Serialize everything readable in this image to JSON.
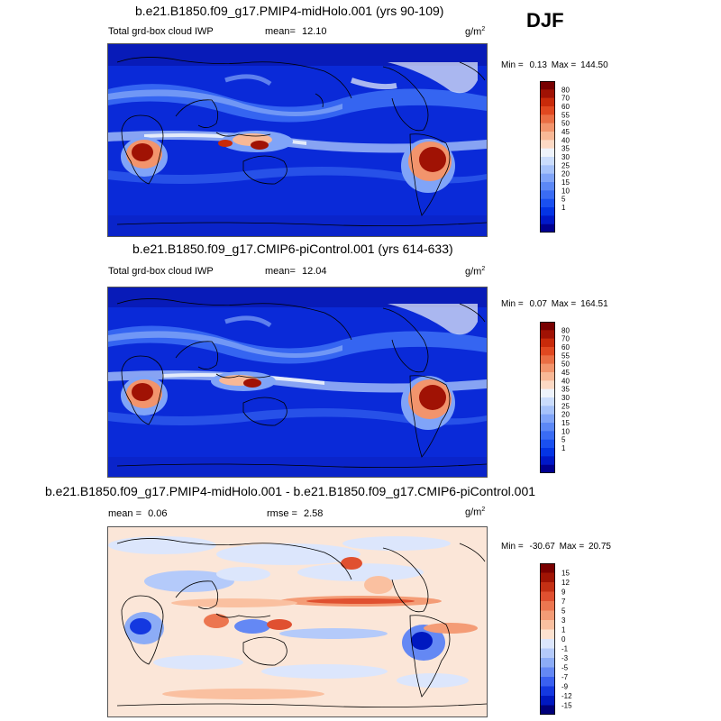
{
  "season": "DJF",
  "colors": {
    "seq": [
      "#000090",
      "#0018c8",
      "#0434e4",
      "#1a50f0",
      "#3a6cf4",
      "#5c88f6",
      "#80a4f8",
      "#a6c2fa",
      "#cadcfc",
      "#eef3fb",
      "#fcd9c4",
      "#f8b896",
      "#f2946c",
      "#ea6e44",
      "#e04820",
      "#c82a0a",
      "#a01204",
      "#780000"
    ],
    "div": [
      "#00007a",
      "#0018c0",
      "#1438e0",
      "#3a60f0",
      "#6488f4",
      "#8cacf6",
      "#b4cafa",
      "#dce6fc",
      "#fce2d0",
      "#fac0a0",
      "#f49c76",
      "#ec7650",
      "#e05030",
      "#c43014",
      "#a01404",
      "#7a0000"
    ]
  },
  "panels": [
    {
      "title": "b.e21.B1850.f09_g17.PMIP4-midHolo.001 (yrs 90-109)",
      "left_label": "Total grd-box cloud IWP",
      "mean_label": "mean=",
      "mean_value": "12.10",
      "units": "g/m",
      "units_exp": "2",
      "min_label": "Min =",
      "min_value": "0.13",
      "max_label": "Max =",
      "max_value": "144.50",
      "levels": [
        "80",
        "70",
        "60",
        "55",
        "50",
        "45",
        "40",
        "35",
        "30",
        "25",
        "20",
        "15",
        "10",
        "5",
        "1"
      ]
    },
    {
      "title": "b.e21.B1850.f09_g17.CMIP6-piControl.001 (yrs 614-633)",
      "left_label": "Total grd-box cloud IWP",
      "mean_label": "mean=",
      "mean_value": "12.04",
      "units": "g/m",
      "units_exp": "2",
      "min_label": "Min =",
      "min_value": "0.07",
      "max_label": "Max =",
      "max_value": "164.51",
      "levels": [
        "80",
        "70",
        "60",
        "55",
        "50",
        "45",
        "40",
        "35",
        "30",
        "25",
        "20",
        "15",
        "10",
        "5",
        "1"
      ]
    },
    {
      "title": "b.e21.B1850.f09_g17.PMIP4-midHolo.001 - b.e21.B1850.f09_g17.CMIP6-piControl.001",
      "mean_label": "mean =",
      "mean_value": "0.06",
      "rmse_label": "rmse =",
      "rmse_value": "2.58",
      "units": "g/m",
      "units_exp": "2",
      "min_label": "Min =",
      "min_value": "-30.67",
      "max_label": "Max =",
      "max_value": "20.75",
      "levels": [
        "15",
        "12",
        "9",
        "7",
        "5",
        "3",
        "1",
        "0",
        "-1",
        "-3",
        "-5",
        "-7",
        "-9",
        "-12",
        "-15"
      ]
    }
  ]
}
